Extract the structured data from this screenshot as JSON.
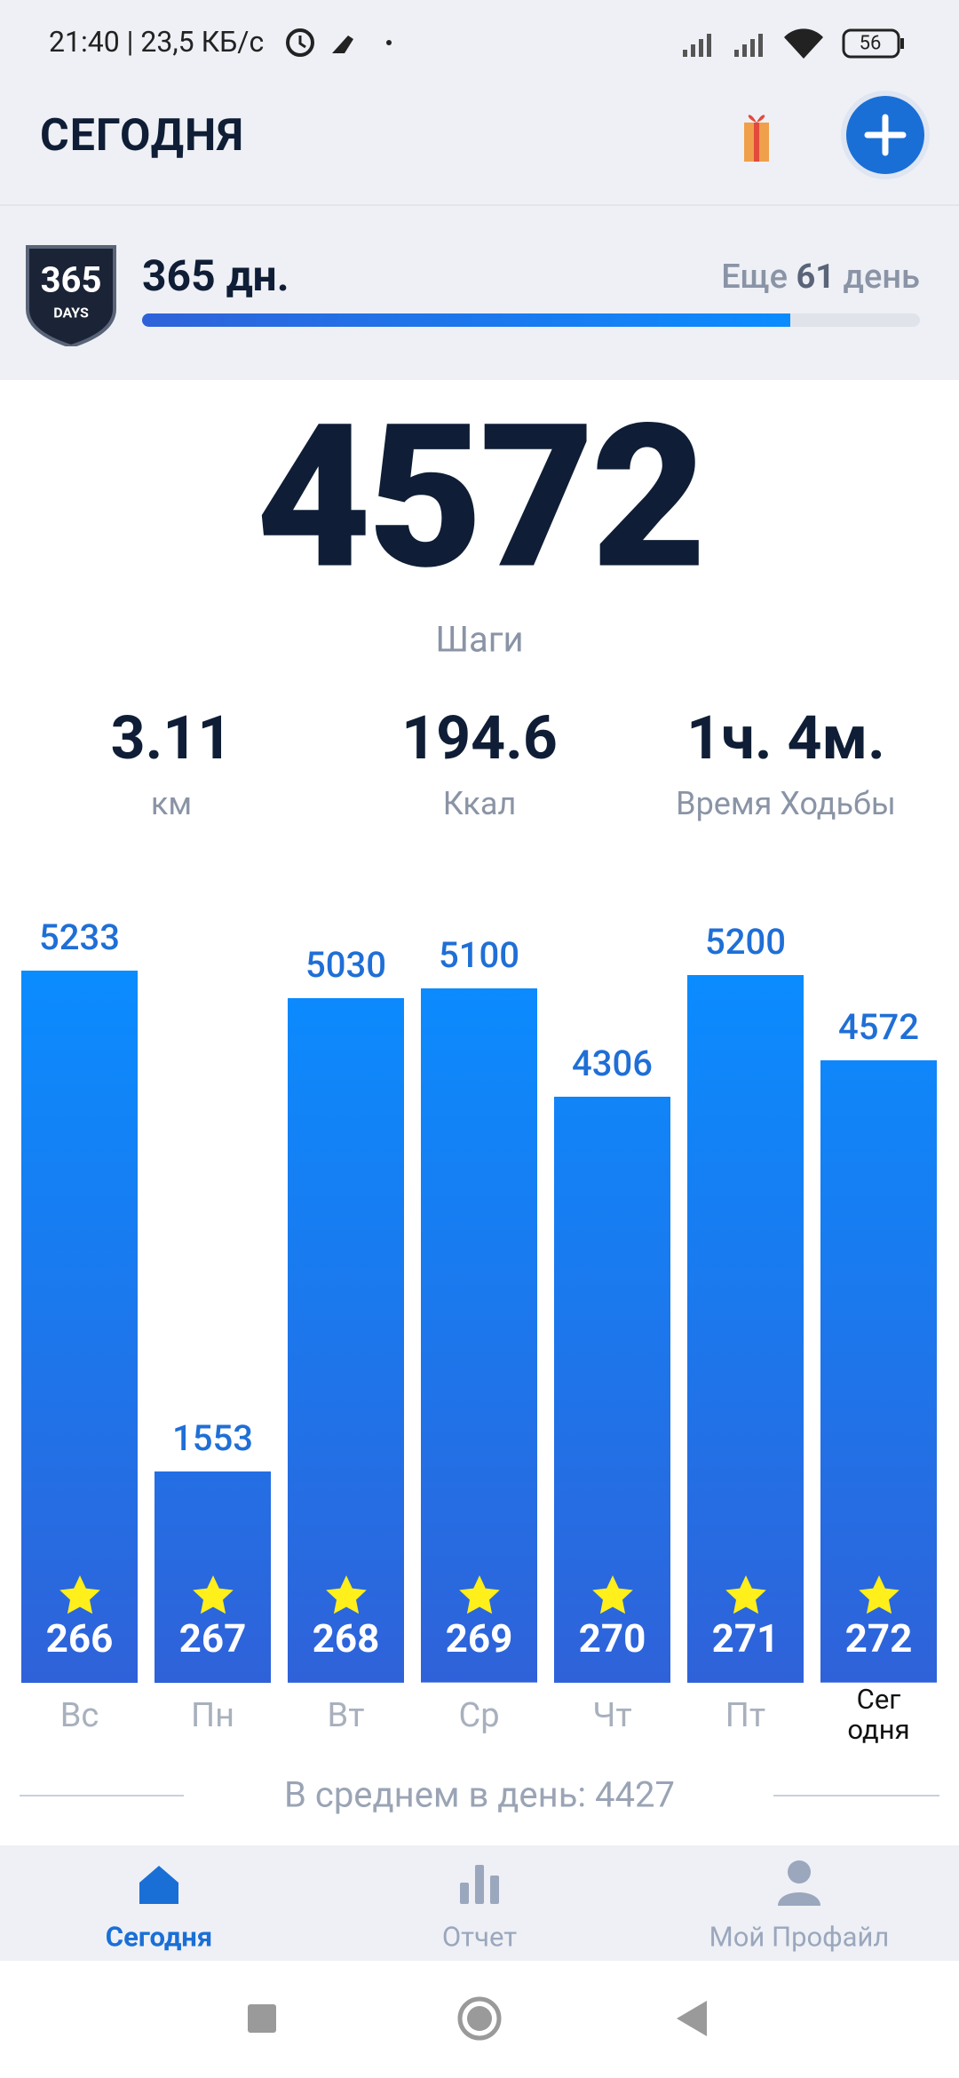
{
  "status_bar": {
    "time_speed": "21:40 | 23,5 КБ/с",
    "battery": "56"
  },
  "header": {
    "title": "СЕГОДНЯ"
  },
  "streak": {
    "badge_number": "365",
    "badge_label": "DAYS",
    "days": 365,
    "unit": "дн.",
    "remaining_prefix": "Еще",
    "remaining": 61,
    "remaining_suffix": "день"
  },
  "summary": {
    "steps": 4572,
    "steps_label": "Шаги",
    "stats": [
      {
        "value": 3.11,
        "label": "км"
      },
      {
        "value": 194.6,
        "label": "Ккал"
      },
      {
        "value": "1ч. 4м.",
        "label": "Время Ходьбы"
      }
    ]
  },
  "chart_data": {
    "type": "bar",
    "categories": [
      "Вс",
      "Пн",
      "Вт",
      "Ср",
      "Чт",
      "Пт",
      "Сег\nодня"
    ],
    "values": [
      5233,
      1553,
      5030,
      5100,
      4306,
      5200,
      4572
    ],
    "day_numbers": [
      266,
      267,
      268,
      269,
      270,
      271,
      272
    ],
    "colors": [
      "#0a8cff",
      "#2f62d9"
    ]
  },
  "average": "В среднем в день: 4427",
  "nav": [
    "Сегодня",
    "Отчет",
    "Мой Профайл"
  ]
}
